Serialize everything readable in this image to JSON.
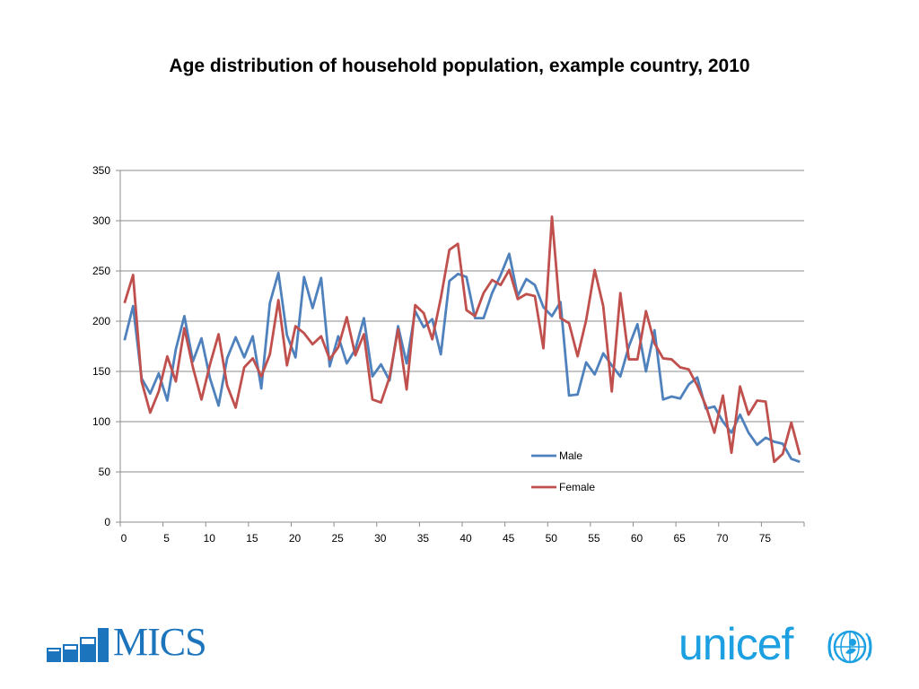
{
  "title": "Age distribution of household population, example country, 2010",
  "logos": {
    "mics": "MICS",
    "unicef": "unicef"
  },
  "colors": {
    "male": "#4f81bd",
    "female": "#c0504d",
    "grid": "#8c8c8c",
    "mics_blue": "#1c75bc",
    "unicef_blue": "#1ca0e1"
  },
  "chart_data": {
    "type": "line",
    "title": "",
    "xlabel": "",
    "ylabel": "",
    "xlim": [
      0,
      80
    ],
    "ylim": [
      0,
      350
    ],
    "x_ticks": [
      0,
      5,
      10,
      15,
      20,
      25,
      30,
      35,
      40,
      45,
      50,
      55,
      60,
      65,
      70,
      75
    ],
    "y_ticks": [
      0,
      50,
      100,
      150,
      200,
      250,
      300,
      350
    ],
    "grid": "horizontal",
    "legend_position": "bottom-right",
    "x": [
      0,
      1,
      2,
      3,
      4,
      5,
      6,
      7,
      8,
      9,
      10,
      11,
      12,
      13,
      14,
      15,
      16,
      17,
      18,
      19,
      20,
      21,
      22,
      23,
      24,
      25,
      26,
      27,
      28,
      29,
      30,
      31,
      32,
      33,
      34,
      35,
      36,
      37,
      38,
      39,
      40,
      41,
      42,
      43,
      44,
      45,
      46,
      47,
      48,
      49,
      50,
      51,
      52,
      53,
      54,
      55,
      56,
      57,
      58,
      59,
      60,
      61,
      62,
      63,
      64,
      65,
      66,
      67,
      68,
      69,
      70,
      71,
      72,
      73,
      74,
      75,
      76,
      77,
      78,
      79
    ],
    "series": [
      {
        "name": "Male",
        "color": "#4f81bd",
        "values": [
          181,
          215,
          143,
          128,
          148,
          121,
          172,
          205,
          160,
          183,
          143,
          116,
          163,
          184,
          164,
          185,
          133,
          218,
          248,
          186,
          164,
          244,
          213,
          243,
          155,
          185,
          158,
          172,
          203,
          145,
          157,
          141,
          195,
          158,
          210,
          194,
          202,
          167,
          240,
          247,
          244,
          203,
          203,
          228,
          246,
          267,
          225,
          242,
          236,
          214,
          205,
          219,
          126,
          127,
          159,
          147,
          168,
          156,
          145,
          175,
          197,
          150,
          191,
          122,
          125,
          123,
          137,
          144,
          113,
          115,
          100,
          89,
          107,
          89,
          77,
          84,
          80,
          78,
          63,
          60
        ]
      },
      {
        "name": "Female",
        "color": "#c0504d",
        "values": [
          218,
          246,
          140,
          109,
          130,
          165,
          140,
          193,
          154,
          122,
          157,
          187,
          136,
          114,
          154,
          163,
          145,
          167,
          221,
          156,
          195,
          188,
          177,
          185,
          162,
          174,
          204,
          166,
          187,
          122,
          119,
          144,
          192,
          132,
          216,
          208,
          182,
          223,
          271,
          277,
          211,
          205,
          228,
          241,
          236,
          251,
          222,
          227,
          225,
          173,
          304,
          203,
          198,
          165,
          201,
          251,
          215,
          130,
          228,
          162,
          162,
          210,
          178,
          163,
          162,
          154,
          152,
          136,
          116,
          89,
          126,
          69,
          135,
          107,
          121,
          120,
          60,
          68,
          99,
          67
        ]
      }
    ]
  }
}
